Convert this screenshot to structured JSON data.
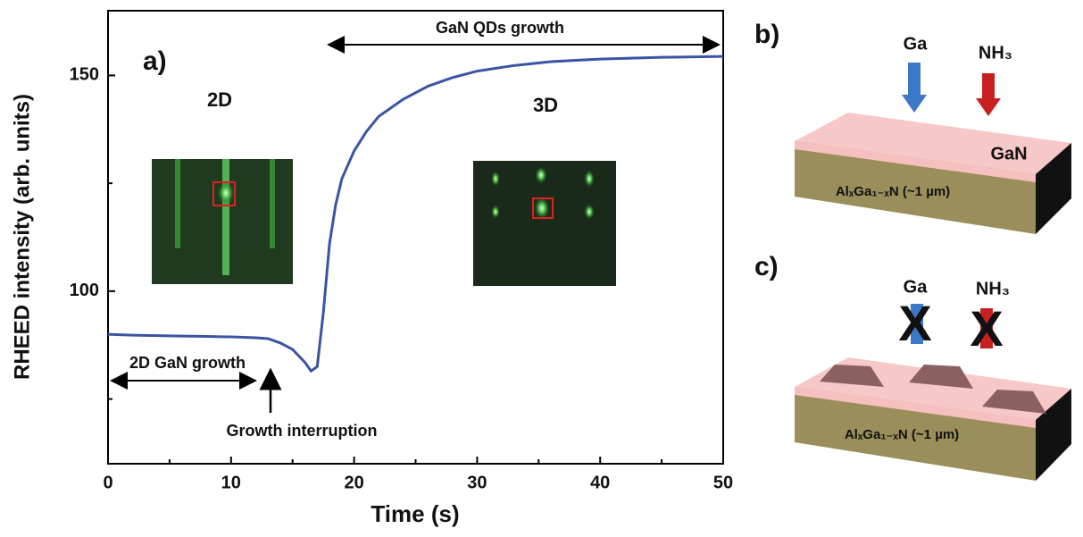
{
  "chart_data": {
    "type": "line",
    "title": "a)",
    "x_label": "Time (s)",
    "y_label": "RHEED intensity (arb. units)",
    "x": [
      0,
      2,
      4,
      6,
      8,
      10,
      12,
      13,
      14,
      15,
      16,
      16.5,
      17,
      17.5,
      18,
      18.5,
      19,
      20,
      21,
      22,
      24,
      26,
      28,
      30,
      33,
      36,
      40,
      45,
      50
    ],
    "series": [
      {
        "color": "#3a54a4",
        "values": [
          90,
          89.8,
          89.7,
          89.6,
          89.5,
          89.4,
          89.2,
          89,
          88,
          86.5,
          83.5,
          81.5,
          82.5,
          95,
          111,
          120,
          126,
          132.5,
          137,
          140.5,
          144.5,
          147.5,
          149.5,
          151,
          152.3,
          153.2,
          153.8,
          154.2,
          154.4
        ]
      }
    ],
    "xlim": [
      0,
      50
    ],
    "ylim": [
      60,
      165
    ],
    "xticks": [
      0,
      10,
      20,
      30,
      40,
      50
    ],
    "yticks": [
      100,
      150
    ],
    "x_minor_ticks": [
      5,
      15,
      25,
      35,
      45
    ],
    "y_minor_ticks": [
      75,
      125
    ],
    "annotations": {
      "left_image": "2D",
      "right_image": "3D",
      "qd_growth": "GaN  QDs growth",
      "gan_growth": "2D GaN  growth",
      "interruption": "Growth interruption"
    }
  },
  "panel_b": {
    "label": "b)",
    "ga": "Ga",
    "nh3": "NH₃",
    "layer": "GaN",
    "substrate": "AlₓGa₁₋ₓN (~1 µm)"
  },
  "panel_c": {
    "label": "c)",
    "ga": "Ga",
    "nh3": "NH₃",
    "substrate": "AlₓGa₁₋ₓN (~1 µm)"
  }
}
